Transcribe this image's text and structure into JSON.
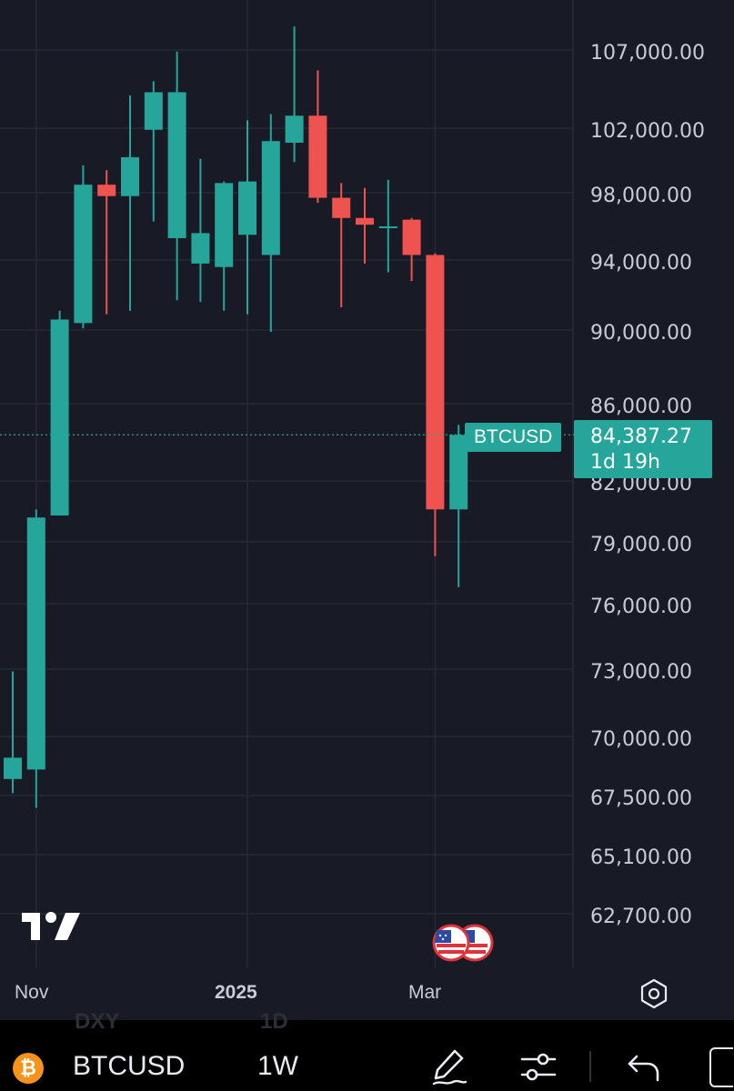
{
  "chart_data": {
    "type": "candlestick",
    "symbol": "BTCUSD",
    "interval": "1W",
    "price_labels": [
      "107,000.00",
      "102,000.00",
      "98,000.00",
      "94,000.00",
      "90,000.00",
      "86,000.00",
      "82,000.00",
      "79,000.00",
      "76,000.00",
      "73,000.00",
      "70,000.00",
      "67,500.00",
      "65,100.00",
      "62,700.00"
    ],
    "price_values": [
      107000,
      102000,
      98000,
      94000,
      90000,
      86000,
      82000,
      79000,
      76000,
      73000,
      70000,
      67500,
      65100,
      62700
    ],
    "x_labels": [
      {
        "text": "Nov",
        "after_index": 1,
        "bold": false
      },
      {
        "text": "2025",
        "after_index": 10,
        "bold": true
      },
      {
        "text": "Mar",
        "after_index": 18,
        "bold": false
      }
    ],
    "candles": [
      {
        "o": 68200,
        "h": 72900,
        "l": 67600,
        "c": 69100
      },
      {
        "o": 68600,
        "h": 80600,
        "l": 67000,
        "c": 80200
      },
      {
        "o": 80300,
        "h": 91100,
        "l": 80300,
        "c": 90600
      },
      {
        "o": 90400,
        "h": 99700,
        "l": 90100,
        "c": 98500
      },
      {
        "o": 98500,
        "h": 99400,
        "l": 90900,
        "c": 97800
      },
      {
        "o": 97800,
        "h": 104100,
        "l": 91100,
        "c": 100200
      },
      {
        "o": 101900,
        "h": 105000,
        "l": 96300,
        "c": 104300
      },
      {
        "o": 95300,
        "h": 106900,
        "l": 91700,
        "c": 104300
      },
      {
        "o": 93800,
        "h": 100100,
        "l": 91600,
        "c": 95600
      },
      {
        "o": 93600,
        "h": 98700,
        "l": 91100,
        "c": 98600
      },
      {
        "o": 95500,
        "h": 102500,
        "l": 90900,
        "c": 98700
      },
      {
        "o": 94300,
        "h": 102900,
        "l": 89900,
        "c": 101200
      },
      {
        "o": 101100,
        "h": 108500,
        "l": 99900,
        "c": 102800
      },
      {
        "o": 102800,
        "h": 105700,
        "l": 97400,
        "c": 97700
      },
      {
        "o": 97700,
        "h": 98600,
        "l": 91300,
        "c": 96500
      },
      {
        "o": 96500,
        "h": 98300,
        "l": 93800,
        "c": 96100
      },
      {
        "o": 96000,
        "h": 98800,
        "l": 93300,
        "c": 96000
      },
      {
        "o": 96400,
        "h": 96500,
        "l": 92800,
        "c": 94300
      },
      {
        "o": 94300,
        "h": 94400,
        "l": 78300,
        "c": 80600
      },
      {
        "o": 80600,
        "h": 84900,
        "l": 76800,
        "c": 84387
      }
    ],
    "current_price": 84387.27,
    "current_price_label": "84,387.27",
    "countdown": "1d 19h",
    "colors": {
      "up": "#26a69a",
      "down": "#ef5350",
      "background": "#181a26",
      "grid": "#262a36",
      "axis_text": "#c9ccd6"
    }
  },
  "toolbar": {
    "symbol": "BTCUSD",
    "interval": "1W",
    "icons": [
      "bitcoin-icon",
      "draw-pen-icon",
      "indicators-sliders-icon",
      "undo-icon"
    ]
  },
  "ghost_labels": [
    "DXY",
    "1D"
  ]
}
